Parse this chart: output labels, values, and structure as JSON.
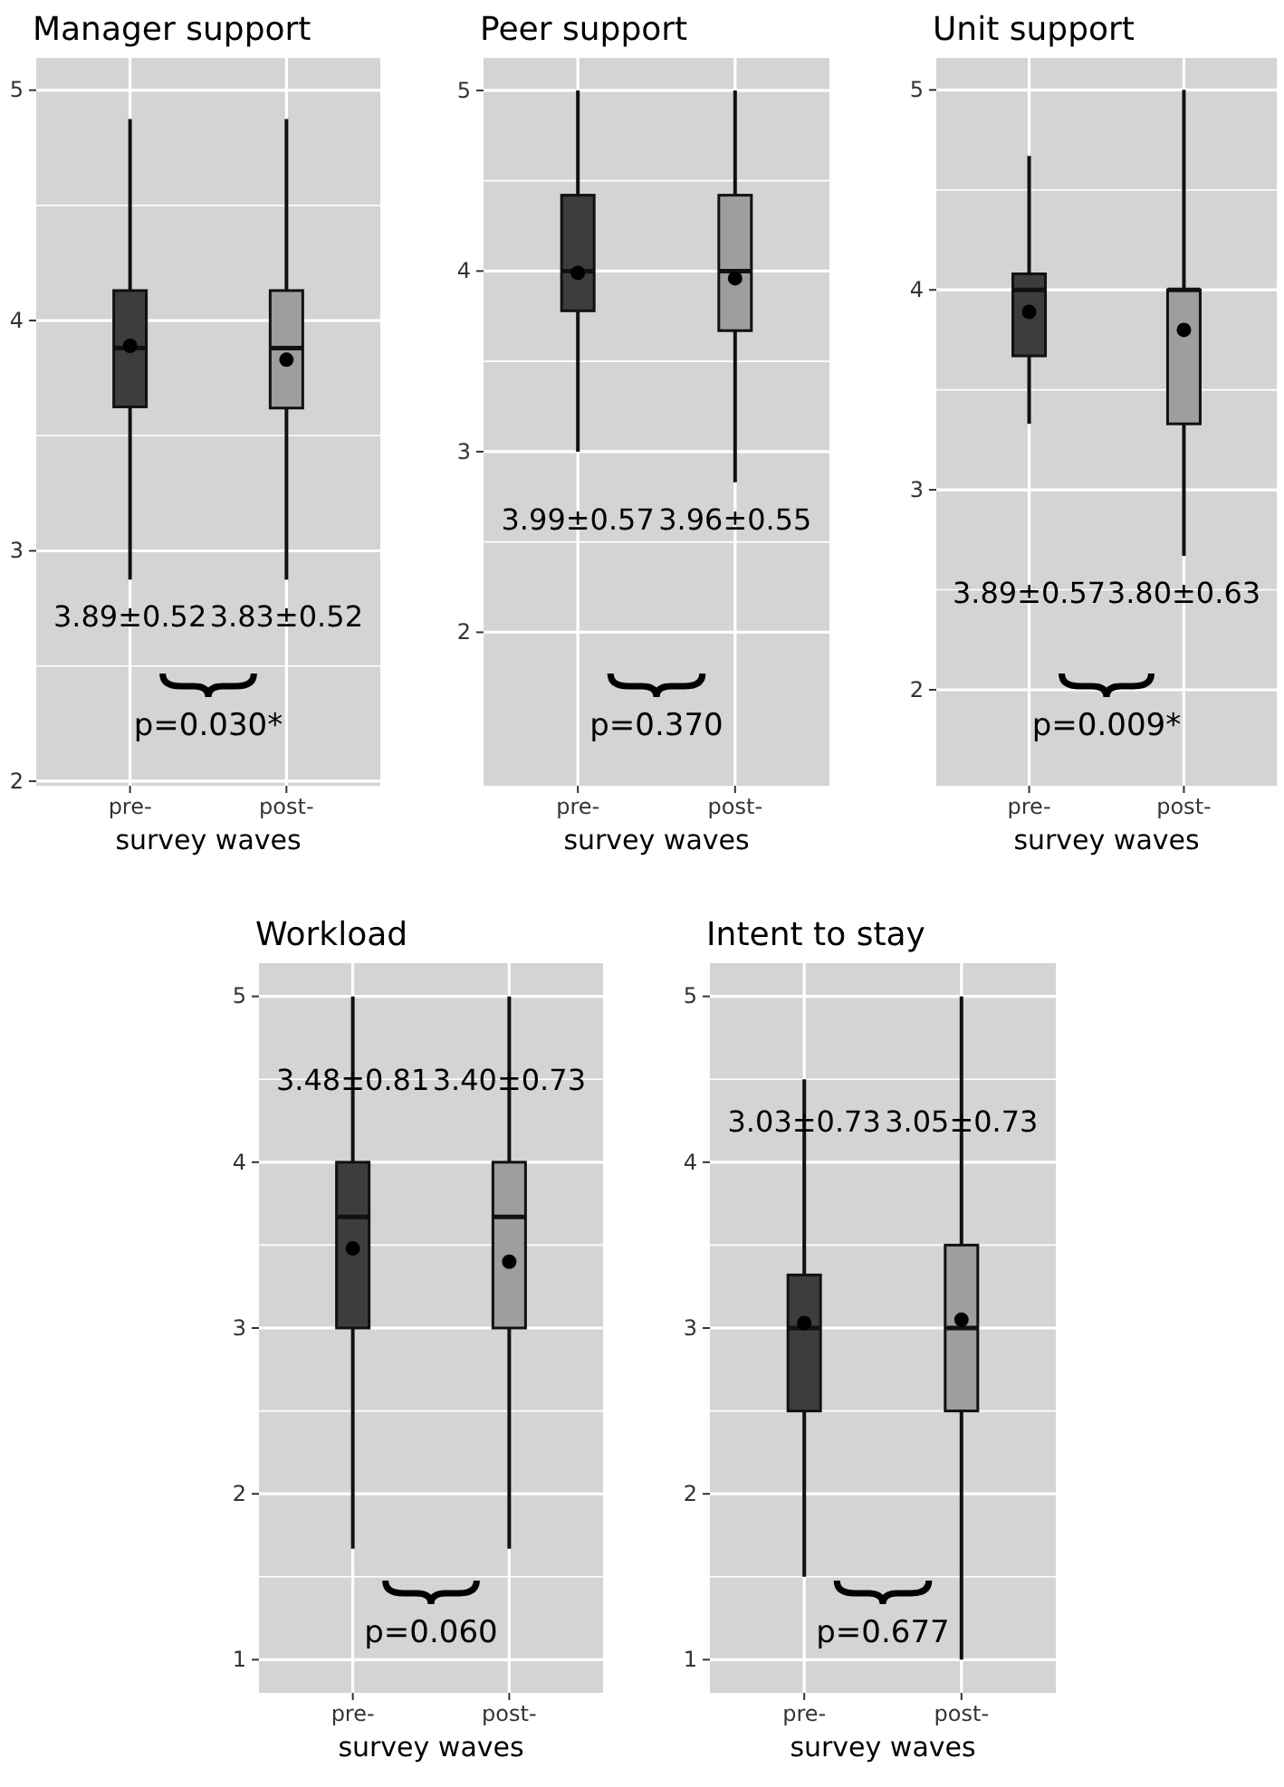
{
  "chart_data": [
    {
      "type": "box",
      "title": "Manager support",
      "xlabel": "survey waves",
      "categories": [
        "pre-",
        "post-"
      ],
      "colors": [
        "#3d3d3d",
        "#9e9e9e"
      ],
      "boxes": [
        {
          "low": 2.875,
          "q1": 3.625,
          "median": 3.88,
          "q3": 4.13,
          "high": 4.875,
          "mean": 3.89
        },
        {
          "low": 2.875,
          "q1": 3.62,
          "median": 3.88,
          "q3": 4.13,
          "high": 4.875,
          "mean": 3.83
        }
      ],
      "ylim": [
        1.98,
        5.14
      ],
      "yticks": [
        2,
        3,
        4,
        5
      ],
      "grid": true,
      "annotations": [
        "3.89±0.52",
        "3.83±0.52",
        "p=0.030*"
      ]
    },
    {
      "type": "box",
      "title": "Peer support",
      "xlabel": "survey waves",
      "categories": [
        "pre-",
        "post-"
      ],
      "colors": [
        "#3d3d3d",
        "#9e9e9e"
      ],
      "boxes": [
        {
          "low": 3,
          "q1": 3.78,
          "median": 4,
          "q3": 4.42,
          "high": 5,
          "mean": 3.99
        },
        {
          "low": 2.83,
          "q1": 3.67,
          "median": 4,
          "q3": 4.42,
          "high": 5,
          "mean": 3.96
        }
      ],
      "ylim": [
        1.15,
        5.18
      ],
      "yticks": [
        2,
        3,
        4,
        5
      ],
      "grid": true,
      "annotations": [
        "3.99±0.57",
        "3.96±0.55",
        "p=0.370"
      ]
    },
    {
      "type": "box",
      "title": "Unit support",
      "xlabel": "survey waves",
      "categories": [
        "pre-",
        "post-"
      ],
      "colors": [
        "#3d3d3d",
        "#9e9e9e"
      ],
      "boxes": [
        {
          "low": 3.33,
          "q1": 3.67,
          "median": 4,
          "q3": 4.08,
          "high": 4.67,
          "mean": 3.89
        },
        {
          "low": 2.67,
          "q1": 3.33,
          "median": 4,
          "q3": 4,
          "high": 5,
          "mean": 3.8
        }
      ],
      "ylim": [
        1.52,
        5.16
      ],
      "yticks": [
        2,
        3,
        4,
        5
      ],
      "grid": true,
      "annotations": [
        "3.89±0.57",
        "3.80±0.63",
        "p=0.009*"
      ]
    },
    {
      "type": "box",
      "title": "Workload",
      "xlabel": "survey waves",
      "categories": [
        "pre-",
        "post-"
      ],
      "colors": [
        "#3d3d3d",
        "#9e9e9e"
      ],
      "boxes": [
        {
          "low": 1.67,
          "q1": 3,
          "median": 3.67,
          "q3": 4,
          "high": 5,
          "mean": 3.48
        },
        {
          "low": 1.67,
          "q1": 3,
          "median": 3.67,
          "q3": 4,
          "high": 5,
          "mean": 3.4
        }
      ],
      "ylim": [
        0.8,
        5.2
      ],
      "yticks": [
        1,
        2,
        3,
        4,
        5
      ],
      "grid": true,
      "annotations": [
        "3.48±0.81",
        "3.40±0.73",
        "p=0.060"
      ]
    },
    {
      "type": "box",
      "title": "Intent to stay",
      "xlabel": "survey waves",
      "categories": [
        "pre-",
        "post-"
      ],
      "colors": [
        "#3d3d3d",
        "#9e9e9e"
      ],
      "boxes": [
        {
          "low": 1.5,
          "q1": 2.5,
          "median": 3,
          "q3": 3.32,
          "high": 4.5,
          "mean": 3.03
        },
        {
          "low": 1,
          "q1": 2.5,
          "median": 3,
          "q3": 3.5,
          "high": 5,
          "mean": 3.05
        }
      ],
      "ylim": [
        0.8,
        5.2
      ],
      "yticks": [
        1,
        2,
        3,
        4,
        5
      ],
      "grid": true,
      "annotations": [
        "3.03±0.73",
        "3.05±0.73",
        "p=0.677"
      ]
    }
  ]
}
